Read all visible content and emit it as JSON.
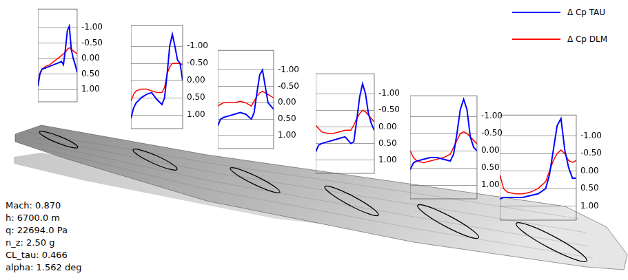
{
  "chart_data": [
    {
      "type": "line",
      "x": [
        0,
        0.05,
        0.1,
        0.2,
        0.3,
        0.4,
        0.5,
        0.6,
        0.65,
        0.7,
        0.75,
        0.8,
        0.85,
        0.9,
        0.95,
        1
      ],
      "series": [
        {
          "name": "Δ Cp TAU",
          "color": "#0000ff",
          "values": [
            0.9,
            0.5,
            0.35,
            0.3,
            0.25,
            0.2,
            0.15,
            0.1,
            0.2,
            -0.3,
            -0.9,
            -1.05,
            -0.3,
            0.0,
            0.2,
            0.45
          ]
        },
        {
          "name": "Δ Cp DLM",
          "color": "#ff0000",
          "values": [
            0.8,
            0.5,
            0.35,
            0.25,
            0.2,
            0.1,
            0.0,
            -0.1,
            -0.15,
            -0.2,
            -0.3,
            -0.35,
            -0.3,
            -0.25,
            -0.2,
            -0.15
          ]
        }
      ],
      "xlim": [
        0,
        1
      ],
      "ylim": [
        1.4,
        -1.6
      ],
      "yticks": [
        {
          "value": -1,
          "label": "-1.00"
        },
        {
          "value": -0.5,
          "label": "-0.50"
        },
        {
          "value": 0,
          "label": "0.00"
        },
        {
          "value": 0.5,
          "label": "0.50"
        },
        {
          "value": 1,
          "label": "1.00"
        }
      ],
      "tick_labels": "y",
      "grid": true,
      "legend": "upper right"
    },
    {
      "type": "line",
      "x": [
        0,
        0.05,
        0.1,
        0.2,
        0.3,
        0.4,
        0.5,
        0.6,
        0.65,
        0.7,
        0.75,
        0.8,
        0.85,
        0.9,
        0.95,
        1
      ],
      "series": [
        {
          "name": "Δ Cp TAU",
          "color": "#0000ff",
          "values": [
            1.1,
            0.8,
            0.65,
            0.5,
            0.4,
            0.35,
            0.55,
            0.7,
            0.5,
            -0.2,
            -1.0,
            -1.35,
            -1.0,
            -0.6,
            -0.5,
            0.0
          ]
        },
        {
          "name": "Δ Cp DLM",
          "color": "#ff0000",
          "values": [
            0.6,
            0.4,
            0.3,
            0.25,
            0.25,
            0.3,
            0.35,
            0.35,
            0.2,
            -0.2,
            -0.4,
            -0.5,
            -0.5,
            -0.5,
            -0.5,
            -0.45
          ]
        }
      ],
      "xlim": [
        0,
        1
      ],
      "ylim": [
        1.4,
        -1.6
      ],
      "yticks": [
        {
          "value": -1,
          "label": "-1.00"
        },
        {
          "value": -0.5,
          "label": "-0.50"
        },
        {
          "value": 0,
          "label": "0.00"
        },
        {
          "value": 0.5,
          "label": "0.50"
        },
        {
          "value": 1,
          "label": "1.00"
        }
      ],
      "tick_labels": "y",
      "grid": true
    },
    {
      "type": "line",
      "x": [
        0,
        0.05,
        0.1,
        0.2,
        0.3,
        0.4,
        0.5,
        0.6,
        0.65,
        0.7,
        0.75,
        0.8,
        0.85,
        0.9,
        0.95,
        1
      ],
      "series": [
        {
          "name": "Δ Cp TAU",
          "color": "#0000ff",
          "values": [
            0.7,
            0.5,
            0.45,
            0.4,
            0.35,
            0.3,
            0.35,
            0.5,
            0.3,
            -0.3,
            -0.85,
            -1.0,
            -0.5,
            0.0,
            0.1,
            0.2
          ]
        },
        {
          "name": "Δ Cp DLM",
          "color": "#ff0000",
          "values": [
            0.1,
            0.05,
            0.0,
            0.0,
            0.0,
            -0.05,
            0.0,
            0.1,
            -0.05,
            -0.2,
            -0.3,
            -0.35,
            -0.3,
            -0.25,
            -0.2,
            -0.15
          ]
        }
      ],
      "xlim": [
        0,
        1
      ],
      "ylim": [
        1.4,
        -1.6
      ],
      "yticks": [
        {
          "value": -1,
          "label": "-1.00"
        },
        {
          "value": -0.5,
          "label": "-0.50"
        },
        {
          "value": 0,
          "label": "0.00"
        },
        {
          "value": 0.5,
          "label": "0.50"
        },
        {
          "value": 1,
          "label": "1.00"
        }
      ],
      "tick_labels": "y",
      "grid": true
    },
    {
      "type": "line",
      "x": [
        0,
        0.05,
        0.1,
        0.2,
        0.3,
        0.4,
        0.5,
        0.6,
        0.65,
        0.7,
        0.75,
        0.8,
        0.85,
        0.9,
        0.95,
        1
      ],
      "series": [
        {
          "name": "Δ Cp TAU",
          "color": "#0000ff",
          "values": [
            0.75,
            0.55,
            0.5,
            0.45,
            0.4,
            0.35,
            0.3,
            0.5,
            0.45,
            -0.2,
            -0.9,
            -1.3,
            -1.0,
            -0.4,
            -0.1,
            0.1
          ]
        },
        {
          "name": "Δ Cp DLM",
          "color": "#ff0000",
          "values": [
            -0.05,
            0.05,
            0.15,
            0.2,
            0.2,
            0.15,
            0.1,
            0.1,
            -0.05,
            -0.25,
            -0.4,
            -0.5,
            -0.45,
            -0.35,
            -0.25,
            -0.15
          ]
        }
      ],
      "xlim": [
        0,
        1
      ],
      "ylim": [
        1.4,
        -1.6
      ],
      "yticks": [
        {
          "value": -1,
          "label": "-1.00"
        },
        {
          "value": -0.5,
          "label": "-0.50"
        },
        {
          "value": 0,
          "label": "0.00"
        },
        {
          "value": 0.5,
          "label": "0.50"
        },
        {
          "value": 1,
          "label": "1.00"
        }
      ],
      "tick_labels": "y",
      "grid": true
    },
    {
      "type": "line",
      "x": [
        0,
        0.05,
        0.1,
        0.2,
        0.3,
        0.4,
        0.5,
        0.6,
        0.65,
        0.7,
        0.75,
        0.8,
        0.85,
        0.9,
        0.95,
        1
      ],
      "series": [
        {
          "name": "Δ Cp TAU",
          "color": "#0000ff",
          "values": [
            0.55,
            0.35,
            0.3,
            0.25,
            0.2,
            0.2,
            0.25,
            0.3,
            0.1,
            -0.5,
            -1.2,
            -1.5,
            -1.2,
            -0.4,
            -0.1,
            0.0
          ]
        },
        {
          "name": "Δ Cp DLM",
          "color": "#ff0000",
          "values": [
            0.0,
            0.2,
            0.3,
            0.35,
            0.3,
            0.25,
            0.2,
            0.1,
            -0.1,
            -0.3,
            -0.5,
            -0.55,
            -0.5,
            -0.4,
            -0.3,
            -0.2
          ]
        }
      ],
      "xlim": [
        0,
        1
      ],
      "ylim": [
        1.4,
        -1.6
      ],
      "yticks": [
        {
          "value": -1,
          "label": "-1.00"
        },
        {
          "value": -0.5,
          "label": "-0.50"
        },
        {
          "value": 0,
          "label": "0.00"
        },
        {
          "value": 0.5,
          "label": "0.50"
        },
        {
          "value": 1,
          "label": "1.00"
        }
      ],
      "tick_labels": "y",
      "grid": true
    },
    {
      "type": "line",
      "x": [
        0,
        0.05,
        0.1,
        0.2,
        0.3,
        0.4,
        0.5,
        0.6,
        0.65,
        0.7,
        0.75,
        0.8,
        0.85,
        0.9,
        0.95,
        1
      ],
      "series": [
        {
          "name": "Δ Cp TAU",
          "color": "#0000ff",
          "values": [
            0.8,
            0.75,
            0.75,
            0.75,
            0.75,
            0.7,
            0.65,
            0.5,
            0.1,
            -0.6,
            -1.3,
            -1.5,
            -0.6,
            -0.1,
            0.2,
            0.2
          ]
        },
        {
          "name": "Δ Cp DLM",
          "color": "#ff0000",
          "values": [
            0.1,
            0.5,
            0.6,
            0.65,
            0.65,
            0.6,
            0.5,
            0.3,
            0.0,
            -0.3,
            -0.5,
            -0.6,
            -0.5,
            -0.3,
            -0.25,
            -0.3
          ]
        }
      ],
      "xlim": [
        0,
        1
      ],
      "ylim": [
        1.4,
        -1.6
      ],
      "yticks": [
        {
          "value": -1,
          "label": "-1.00"
        },
        {
          "value": -0.5,
          "label": "-0.50"
        },
        {
          "value": 0,
          "label": "0.00"
        },
        {
          "value": 0.5,
          "label": "0.50"
        },
        {
          "value": 1,
          "label": "1.00"
        }
      ],
      "tick_labels": "y",
      "grid": true
    }
  ],
  "annotations": [
    "Mach: 0.870",
    "h: 6700.0 m",
    "q: 22694.0 Pa",
    "n_z: 2.50 g",
    "CL_tau: 0.466",
    "alpha: 1.562 deg"
  ]
}
